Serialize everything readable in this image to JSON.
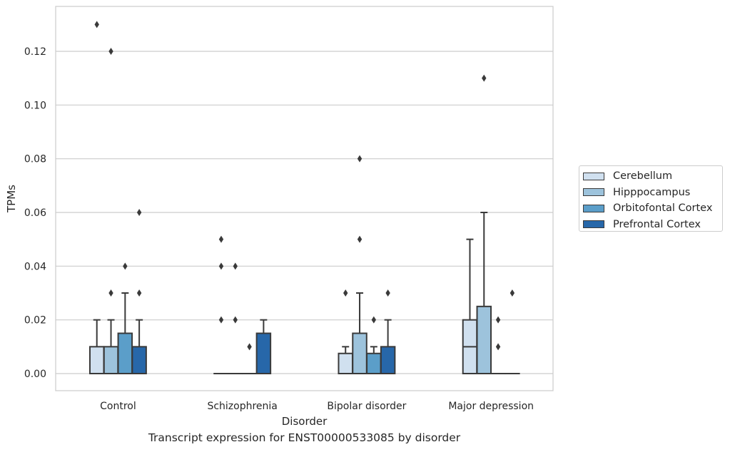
{
  "chart_data": {
    "type": "box",
    "title": "Transcript expression for ENST00000533085 by disorder",
    "xlabel": "Disorder",
    "ylabel": "TPMs",
    "ylim": [
      -0.0065,
      0.137
    ],
    "yticks": [
      "0.00",
      "0.02",
      "0.04",
      "0.06",
      "0.08",
      "0.10",
      "0.12"
    ],
    "categories": [
      "Control",
      "Schizophrenia",
      "Bipolar disorder",
      "Major depression"
    ],
    "grid": "horizontal",
    "legend_position": "right",
    "series": [
      {
        "name": "Cerebellum",
        "color": "#d0e0ef",
        "boxes": [
          {
            "q1": 0.0,
            "median": 0.0,
            "q3": 0.01,
            "whisker_low": 0.0,
            "whisker_high": 0.02,
            "outliers": [
              0.13
            ]
          },
          {
            "q1": 0.0,
            "median": 0.0,
            "q3": 0.0,
            "whisker_low": 0.0,
            "whisker_high": 0.0,
            "outliers": [
              0.05,
              0.04,
              0.02
            ]
          },
          {
            "q1": 0.0,
            "median": 0.0,
            "q3": 0.0075,
            "whisker_low": 0.0,
            "whisker_high": 0.01,
            "outliers": [
              0.03
            ]
          },
          {
            "q1": 0.0,
            "median": 0.01,
            "q3": 0.02,
            "whisker_low": 0.0,
            "whisker_high": 0.05,
            "outliers": []
          }
        ]
      },
      {
        "name": "Hipppocampus",
        "color": "#9dc3dc",
        "boxes": [
          {
            "q1": 0.0,
            "median": 0.0,
            "q3": 0.01,
            "whisker_low": 0.0,
            "whisker_high": 0.02,
            "outliers": [
              0.03,
              0.12
            ]
          },
          {
            "q1": 0.0,
            "median": 0.0,
            "q3": 0.0,
            "whisker_low": 0.0,
            "whisker_high": 0.0,
            "outliers": [
              0.04,
              0.02
            ]
          },
          {
            "q1": 0.0,
            "median": 0.0,
            "q3": 0.015,
            "whisker_low": 0.0,
            "whisker_high": 0.03,
            "outliers": [
              0.08,
              0.05
            ]
          },
          {
            "q1": 0.0,
            "median": 0.0,
            "q3": 0.025,
            "whisker_low": 0.0,
            "whisker_high": 0.06,
            "outliers": [
              0.11
            ]
          }
        ]
      },
      {
        "name": "Orbitofontal Cortex",
        "color": "#5b9ec9",
        "boxes": [
          {
            "q1": 0.0,
            "median": 0.0,
            "q3": 0.015,
            "whisker_low": 0.0,
            "whisker_high": 0.03,
            "outliers": [
              0.04
            ]
          },
          {
            "q1": 0.0,
            "median": 0.0,
            "q3": 0.0,
            "whisker_low": 0.0,
            "whisker_high": 0.0,
            "outliers": [
              0.01
            ]
          },
          {
            "q1": 0.0,
            "median": 0.0,
            "q3": 0.0075,
            "whisker_low": 0.0,
            "whisker_high": 0.01,
            "outliers": [
              0.02
            ]
          },
          {
            "q1": 0.0,
            "median": 0.0,
            "q3": 0.0,
            "whisker_low": 0.0,
            "whisker_high": 0.0,
            "outliers": [
              0.02,
              0.01
            ]
          }
        ]
      },
      {
        "name": "Prefrontal Cortex",
        "color": "#2767a9",
        "boxes": [
          {
            "q1": 0.0,
            "median": 0.0,
            "q3": 0.01,
            "whisker_low": 0.0,
            "whisker_high": 0.02,
            "outliers": [
              0.03,
              0.06
            ]
          },
          {
            "q1": 0.0,
            "median": 0.0,
            "q3": 0.015,
            "whisker_low": 0.0,
            "whisker_high": 0.02,
            "outliers": []
          },
          {
            "q1": 0.0,
            "median": 0.0,
            "q3": 0.01,
            "whisker_low": 0.0,
            "whisker_high": 0.02,
            "outliers": [
              0.03
            ]
          },
          {
            "q1": 0.0,
            "median": 0.0,
            "q3": 0.0,
            "whisker_low": 0.0,
            "whisker_high": 0.0,
            "outliers": [
              0.03
            ]
          }
        ]
      }
    ]
  }
}
